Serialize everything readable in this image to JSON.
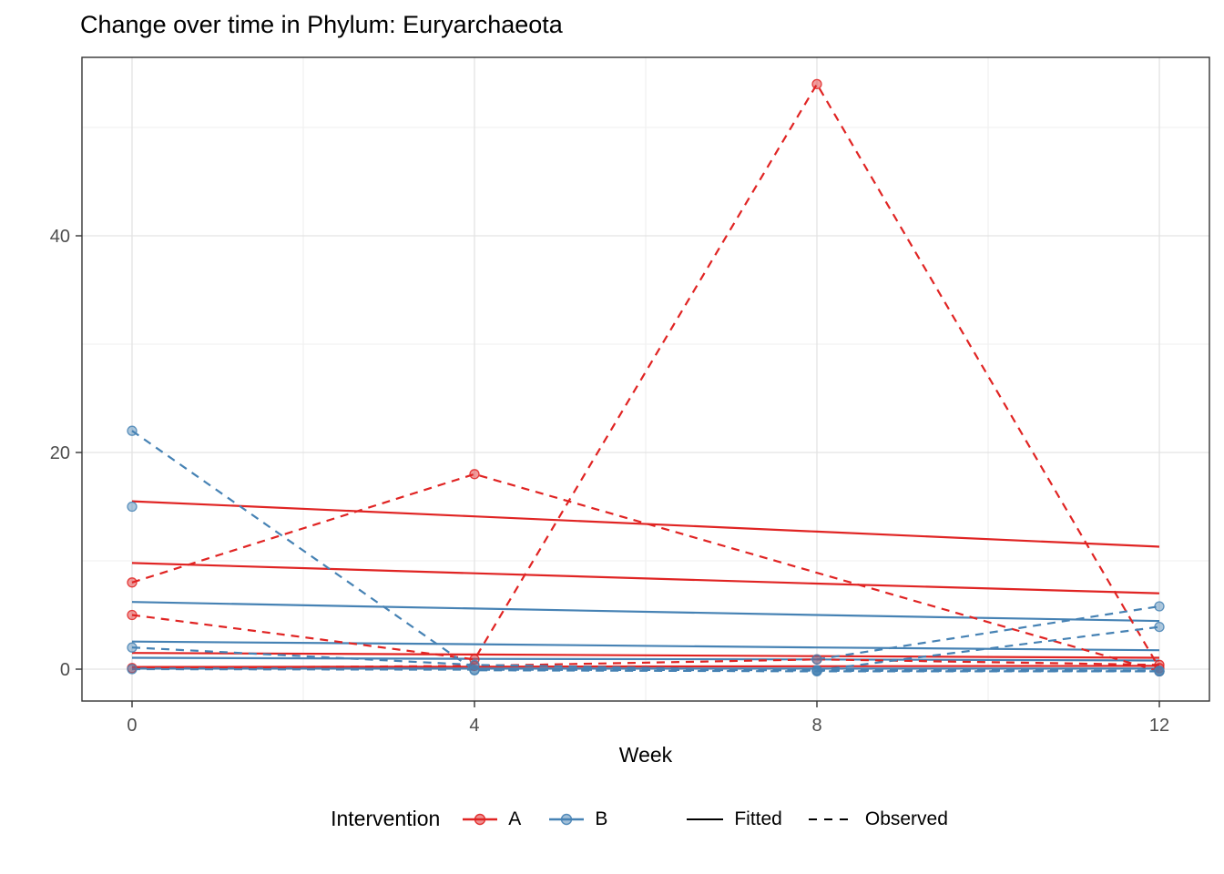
{
  "chart_data": {
    "type": "line",
    "title": "Change over time in Phylum: Euryarchaeota",
    "xlabel": "Week",
    "ylabel": "",
    "x": [
      0,
      4,
      8,
      12
    ],
    "xlim": [
      -0.585,
      12.585
    ],
    "ylim": [
      -2.94,
      56.47
    ],
    "x_ticks": [
      "0",
      "4",
      "8",
      "12"
    ],
    "x_tick_values": [
      0,
      4,
      8,
      12
    ],
    "y_ticks": [
      "0",
      "20",
      "40"
    ],
    "y_tick_values": [
      0,
      20,
      40
    ],
    "x_minor": [
      2,
      6,
      10
    ],
    "y_minor": [
      10,
      30,
      50
    ],
    "grid": true,
    "legend_position": "bottom",
    "colors": {
      "A": "#E02423",
      "B": "#4682B4",
      "line": "#000000"
    },
    "series": [
      {
        "name": "A-fitted-1",
        "group": "A",
        "style": "fitted",
        "values": [
          15.5,
          14.1,
          12.7,
          11.3
        ]
      },
      {
        "name": "A-fitted-2",
        "group": "A",
        "style": "fitted",
        "values": [
          9.8,
          8.85,
          7.9,
          7.0
        ]
      },
      {
        "name": "A-fitted-3",
        "group": "A",
        "style": "fitted",
        "values": [
          1.5,
          1.35,
          1.2,
          1.05
        ]
      },
      {
        "name": "A-fitted-4",
        "group": "A",
        "style": "fitted",
        "values": [
          0.2,
          0.23,
          0.27,
          0.3
        ]
      },
      {
        "name": "B-fitted-1",
        "group": "B",
        "style": "fitted",
        "values": [
          6.2,
          5.6,
          5.0,
          4.45
        ]
      },
      {
        "name": "B-fitted-2",
        "group": "B",
        "style": "fitted",
        "values": [
          2.55,
          2.3,
          2.0,
          1.75
        ]
      },
      {
        "name": "B-fitted-3",
        "group": "B",
        "style": "fitted",
        "values": [
          1.05,
          0.95,
          0.9,
          0.8
        ]
      },
      {
        "name": "B-fitted-4",
        "group": "B",
        "style": "fitted",
        "values": [
          0.05,
          0.05,
          0.05,
          0.05
        ]
      },
      {
        "name": "A-observed-1",
        "group": "A",
        "style": "observed",
        "values": [
          8,
          18,
          null,
          -0.2
        ]
      },
      {
        "name": "A-observed-2",
        "group": "A",
        "style": "observed",
        "values": [
          5,
          0.9,
          54,
          0.1
        ]
      },
      {
        "name": "A-observed-3",
        "group": "A",
        "style": "observed",
        "values": [
          0.1,
          0.3,
          0.9,
          0.4
        ]
      },
      {
        "name": "B-observed-1",
        "group": "B",
        "style": "observed",
        "values": [
          22,
          -0.1,
          -0.2,
          -0.2
        ]
      },
      {
        "name": "B-observed-2",
        "group": "B",
        "style": "observed",
        "values": [
          15,
          null,
          null,
          null
        ]
      },
      {
        "name": "B-observed-3",
        "group": "B",
        "style": "observed",
        "values": [
          null,
          null,
          0.9,
          5.8
        ]
      },
      {
        "name": "B-observed-4",
        "group": "B",
        "style": "observed",
        "values": [
          null,
          null,
          -0.1,
          3.9
        ]
      },
      {
        "name": "B-observed-5",
        "group": "B",
        "style": "observed",
        "values": [
          2.0,
          0.4,
          -0.15,
          -0.2
        ]
      },
      {
        "name": "B-observed-6",
        "group": "B",
        "style": "observed",
        "values": [
          0.0,
          -0.05,
          -0.1,
          -0.15
        ]
      }
    ],
    "legend": {
      "title": "Intervention",
      "groups": [
        {
          "label": "A",
          "color_key": "A"
        },
        {
          "label": "B",
          "color_key": "B"
        }
      ],
      "linetypes": [
        {
          "label": "Fitted",
          "style": "solid"
        },
        {
          "label": "Observed",
          "style": "dashed"
        }
      ]
    },
    "style": {
      "panel_border": "#333333",
      "grid_major": "#E3E3E3",
      "grid_minor": "#EFEFEF",
      "tick_color": "#333333",
      "tick_label_color": "#4D4D4D"
    }
  }
}
